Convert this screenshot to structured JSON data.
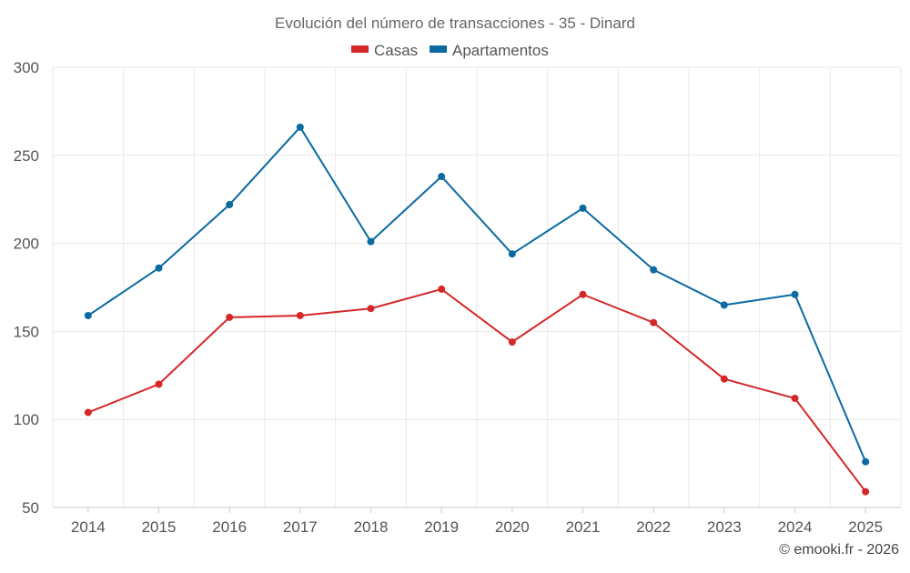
{
  "chart_data": {
    "type": "line",
    "title": "Evolución del número de transacciones - 35 - Dinard",
    "categories": [
      "2014",
      "2015",
      "2016",
      "2017",
      "2018",
      "2019",
      "2020",
      "2021",
      "2022",
      "2023",
      "2024",
      "2025"
    ],
    "series": [
      {
        "name": "Casas",
        "color": "#d62728",
        "values": [
          104,
          120,
          158,
          159,
          163,
          174,
          144,
          171,
          155,
          123,
          112,
          59
        ]
      },
      {
        "name": "Apartamentos",
        "color": "#0a6aa1",
        "values": [
          159,
          186,
          222,
          266,
          201,
          238,
          194,
          220,
          185,
          165,
          171,
          76
        ]
      }
    ],
    "ylim": [
      50,
      300
    ],
    "yticks": [
      "50",
      "100",
      "150",
      "200",
      "250",
      "300"
    ],
    "xlabel": "",
    "ylabel": "",
    "grid": true,
    "legend": "top-center"
  },
  "credit": "© emooki.fr - 2026"
}
